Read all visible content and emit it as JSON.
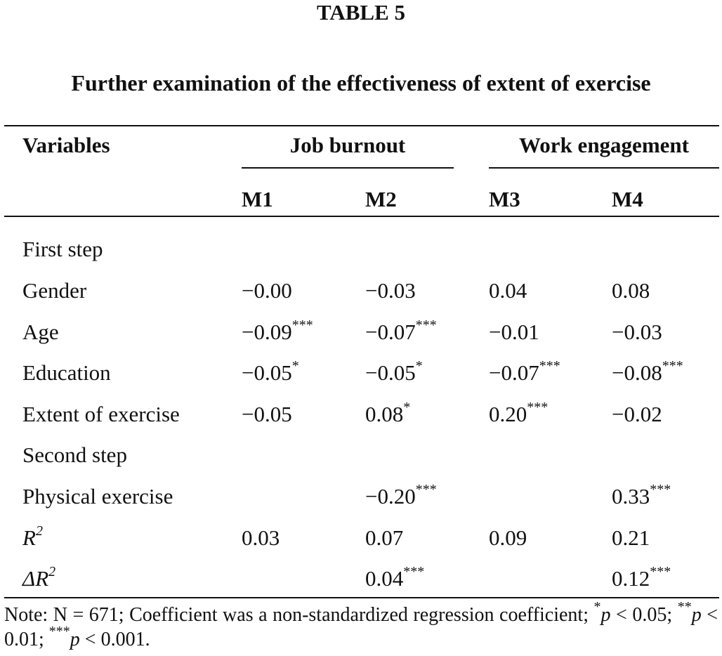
{
  "table_label": "TABLE 5",
  "caption": "Further examination of the effectiveness of extent of exercise",
  "headers": {
    "variables": "Variables",
    "group1": "Job burnout",
    "group2": "Work engagement",
    "models": [
      "M1",
      "M2",
      "M3",
      "M4"
    ]
  },
  "rows": [
    {
      "label": "First step",
      "values": [
        "",
        "",
        "",
        ""
      ]
    },
    {
      "label": "Gender",
      "values": [
        "−0.00",
        "−0.03",
        "0.04",
        "0.08"
      ]
    },
    {
      "label": "Age",
      "values": [
        "−0.09***",
        "−0.07***",
        "−0.01",
        "−0.03"
      ]
    },
    {
      "label": "Education",
      "values": [
        "−0.05*",
        "−0.05*",
        "−0.07***",
        "−0.08***"
      ]
    },
    {
      "label": "Extent of exercise",
      "values": [
        "−0.05",
        "0.08*",
        "0.20***",
        "−0.02"
      ]
    },
    {
      "label": "Second step",
      "values": [
        "",
        "",
        "",
        ""
      ]
    },
    {
      "label": "Physical exercise",
      "values": [
        "",
        "−0.20***",
        "",
        "0.33***"
      ]
    },
    {
      "label_main": "R",
      "label_sup": "2",
      "values": [
        "0.03",
        "0.07",
        "0.09",
        "0.21"
      ]
    },
    {
      "label_main": "ΔR",
      "label_sup": "2",
      "values": [
        "",
        "0.04***",
        "",
        "0.12***"
      ]
    }
  ],
  "note": "Note: N = 671; Coefficient was a non-standardized regression coefficient; *p < 0.05; **p < 0.01; ***p < 0.001."
}
